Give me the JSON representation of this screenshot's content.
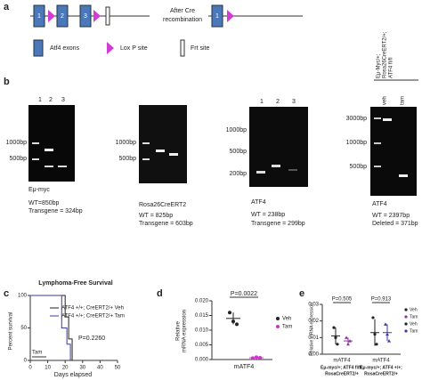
{
  "panel_a": {
    "label": "a",
    "exons": [
      "1",
      "2",
      "3"
    ],
    "after_exon": "1",
    "recombination": [
      "After Cre",
      "recombination"
    ],
    "legend": [
      "Atf4 exons",
      "Lox P site",
      "Frt site"
    ]
  },
  "panel_b": {
    "label": "b",
    "gels": [
      {
        "lanes": [
          "1",
          "2",
          "3"
        ],
        "markers": [
          "1000bp",
          "500bp"
        ],
        "name": "Eμ-myc",
        "notes": [
          "WT=850bp",
          "Transgene = 324bp"
        ]
      },
      {
        "markers": [
          "1000bp",
          "500bp"
        ],
        "name": "Rosa26CreERT2",
        "notes": [
          "WT = 825bp",
          "Transgene = 603bp"
        ]
      },
      {
        "lanes": [
          "1",
          "2",
          "3"
        ],
        "markers": [
          "1000bp",
          "500bp",
          "200bp"
        ],
        "name": "ATF4",
        "notes": [
          "WT = 238bp",
          "Transgene = 299bp"
        ]
      },
      {
        "genotype": [
          "Eμ-Myc/+;",
          "Rosa26CreERT2/+;",
          "ATF4 fl/fl"
        ],
        "lanes": [
          "veh",
          "tam"
        ],
        "markers": [
          "3000bp",
          "1000bp",
          "500bp"
        ],
        "name": "ATF4",
        "notes": [
          "WT = 2397bp",
          "Deleted = 371bp"
        ]
      }
    ]
  },
  "panel_c": {
    "label": "c",
    "title": "Lymphoma-Free Survival",
    "ylabel": "Percent survival",
    "xlabel": "Days elapsed",
    "xlim": [
      0,
      50
    ],
    "ylim": [
      0,
      100
    ],
    "xticks": [
      0,
      10,
      20,
      30,
      40,
      50
    ],
    "yticks": [
      0,
      50,
      100
    ],
    "p_value": "P=0.2260",
    "annotation": "Tam",
    "series": [
      {
        "name": "ATF4 +/+; CreERT2/+ Veh",
        "color": "#222222",
        "x": [
          0,
          20,
          20,
          22,
          22,
          24,
          24
        ],
        "y": [
          100,
          100,
          67,
          67,
          33,
          33,
          0
        ]
      },
      {
        "name": "ATF4 +/+; CreERT2/+ Tam",
        "color": "#3a3aa8",
        "x": [
          0,
          18,
          18,
          21,
          21,
          23,
          23
        ],
        "y": [
          100,
          100,
          50,
          50,
          25,
          25,
          0
        ]
      }
    ]
  },
  "panel_d": {
    "label": "d",
    "ylabel": [
      "Relative",
      "mRNA expression"
    ],
    "xlabel": "mATF4",
    "p_value": "P=0.0022",
    "ylim": [
      0,
      0.02
    ],
    "yticks": [
      {
        "value": 0,
        "label": "0.000"
      },
      {
        "value": 0.005,
        "label": "0.005"
      },
      {
        "value": 0.01,
        "label": "0.010"
      },
      {
        "value": 0.015,
        "label": "0.015"
      },
      {
        "value": 0.02,
        "label": "0.020"
      }
    ],
    "series": [
      {
        "name": "Veh",
        "color": "#222222",
        "values": [
          0.016,
          0.013,
          0.012
        ],
        "mean": 0.014,
        "sd": 0.002
      },
      {
        "name": "Tam",
        "color": "#cc33cc",
        "values": [
          0.0005,
          0.0008,
          0.0006
        ],
        "mean": 0.0006,
        "sd": 0.0002
      }
    ]
  },
  "panel_e": {
    "label": "e",
    "ylabel": "Relative mRNA expression",
    "ylim": [
      0,
      0.03
    ],
    "yticks": [
      {
        "value": 0,
        "label": "0.00"
      },
      {
        "value": 0.01,
        "label": "0.01"
      },
      {
        "value": 0.02,
        "label": "0.02"
      },
      {
        "value": 0.03,
        "label": "0.03"
      }
    ],
    "groups": [
      {
        "xlabel": "mATF4",
        "p_value": "P=0.505",
        "label": [
          "Eμ-myc/+; ATF4 fl/fl;",
          "RosaCreERT2/+"
        ],
        "series": [
          {
            "name": "Veh",
            "color": "#222222",
            "values": [
              0.016,
              0.01,
              0.006
            ],
            "mean": 0.011,
            "sd": 0.005
          },
          {
            "name": "Tam",
            "color": "#8a3a9a",
            "values": [
              0.01,
              0.006,
              0.008
            ],
            "mean": 0.008,
            "sd": 0.002
          }
        ]
      },
      {
        "xlabel": "mATF4",
        "p_value": "P=0.913",
        "label": [
          "Eμ-myc/+; ATF4 +/+;",
          "RosaCreERT2/+"
        ],
        "series": [
          {
            "name": "Veh",
            "color": "#222222",
            "values": [
              0.022,
              0.012,
              0.006
            ],
            "mean": 0.013,
            "sd": 0.008
          },
          {
            "name": "Tam",
            "color": "#3a3aa8",
            "values": [
              0.018,
              0.012,
              0.008
            ],
            "mean": 0.013,
            "sd": 0.005
          }
        ]
      }
    ]
  }
}
